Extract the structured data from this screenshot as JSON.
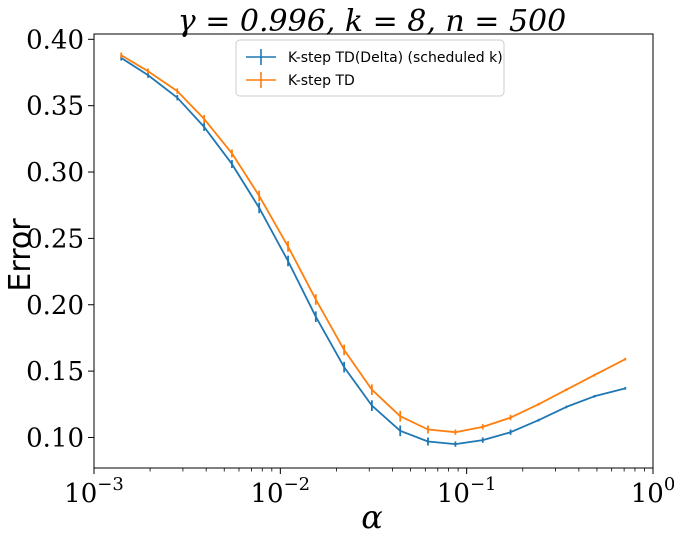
{
  "chart_data": {
    "type": "line",
    "title": "γ = 0.996, k = 8, n = 500",
    "xlabel": "α",
    "ylabel": "Error",
    "xscale": "log",
    "xlim": [
      0.001,
      1
    ],
    "ylim": [
      0.077,
      0.404
    ],
    "x_ticks": [
      {
        "value": 0.001,
        "base": "10",
        "exp": "−3"
      },
      {
        "value": 0.01,
        "base": "10",
        "exp": "−2"
      },
      {
        "value": 0.1,
        "base": "10",
        "exp": "−1"
      },
      {
        "value": 1,
        "base": "10",
        "exp": "0"
      }
    ],
    "y_ticks": [
      {
        "value": 0.1,
        "label": "0.10"
      },
      {
        "value": 0.15,
        "label": "0.15"
      },
      {
        "value": 0.2,
        "label": "0.20"
      },
      {
        "value": 0.25,
        "label": "0.25"
      },
      {
        "value": 0.3,
        "label": "0.30"
      },
      {
        "value": 0.35,
        "label": "0.35"
      },
      {
        "value": 0.4,
        "label": "0.40"
      }
    ],
    "grid": false,
    "legend_position": "top-center",
    "x": [
      0.0014,
      0.00195,
      0.0028,
      0.0039,
      0.0055,
      0.0077,
      0.011,
      0.0155,
      0.022,
      0.031,
      0.044,
      0.062,
      0.087,
      0.122,
      0.172,
      0.243,
      0.343,
      0.485,
      0.71
    ],
    "series": [
      {
        "name": "K-step TD(Delta) (scheduled k)",
        "color": "#1f77b4",
        "values": [
          0.386,
          0.373,
          0.356,
          0.334,
          0.306,
          0.273,
          0.233,
          0.191,
          0.153,
          0.124,
          0.105,
          0.097,
          0.095,
          0.098,
          0.104,
          0.113,
          0.123,
          0.131,
          0.137
        ],
        "errors": [
          0.002,
          0.002,
          0.002,
          0.003,
          0.003,
          0.004,
          0.004,
          0.004,
          0.004,
          0.004,
          0.004,
          0.003,
          0.002,
          0.002,
          0.002,
          0.001,
          0.001,
          0.001,
          0.001
        ]
      },
      {
        "name": "K-step TD",
        "color": "#ff7f0e",
        "values": [
          0.388,
          0.376,
          0.361,
          0.34,
          0.314,
          0.282,
          0.244,
          0.204,
          0.166,
          0.136,
          0.116,
          0.106,
          0.104,
          0.108,
          0.115,
          0.125,
          0.136,
          0.147,
          0.159
        ],
        "errors": [
          0.002,
          0.002,
          0.002,
          0.003,
          0.003,
          0.004,
          0.004,
          0.004,
          0.004,
          0.004,
          0.004,
          0.003,
          0.002,
          0.002,
          0.002,
          0.001,
          0.001,
          0.001,
          0.001
        ]
      }
    ]
  }
}
